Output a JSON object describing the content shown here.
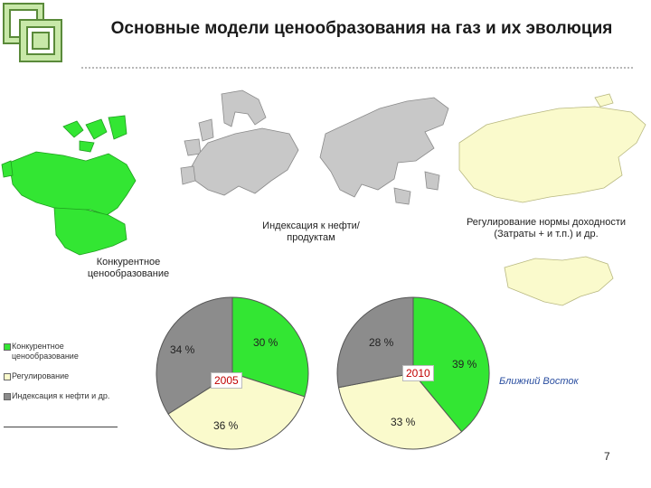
{
  "title": "Основные модели ценообразования на газ и их эволюция",
  "captions": {
    "oil_indexation": "Индексация к нефти/продуктам",
    "rate_of_return": "Регулирование нормы доходности (Затраты + и т.п.) и др.",
    "competitive": "Конкурентное ценообразование"
  },
  "legend": [
    {
      "label": "Конкурентное ценообразование",
      "color": "#33e633"
    },
    {
      "label": "Регулирование",
      "color": "#fafacc"
    },
    {
      "label": "Индексация к нефти и др.",
      "color": "#8c8c8c"
    }
  ],
  "charts": [
    {
      "year": "2005",
      "labels": [
        "30 %",
        "36 %",
        "34 %"
      ]
    },
    {
      "year": "2010",
      "labels": [
        "39 %",
        "33 %",
        "28 %"
      ]
    }
  ],
  "chart_data": [
    {
      "type": "pie",
      "title": "2005",
      "categories": [
        "Конкурентное ценообразование",
        "Регулирование",
        "Индексация к нефти и др."
      ],
      "values": [
        30,
        36,
        34
      ]
    },
    {
      "type": "pie",
      "title": "2010",
      "categories": [
        "Конкурентное ценообразование",
        "Регулирование",
        "Индексация к нефти и др."
      ],
      "values": [
        39,
        33,
        28
      ]
    }
  ],
  "region_label": "Ближний Восток",
  "page_number": "7",
  "colors": {
    "green": "#33e633",
    "cream": "#fafacc",
    "gray": "#8c8c8c",
    "map_gray": "#c8c8c8"
  }
}
